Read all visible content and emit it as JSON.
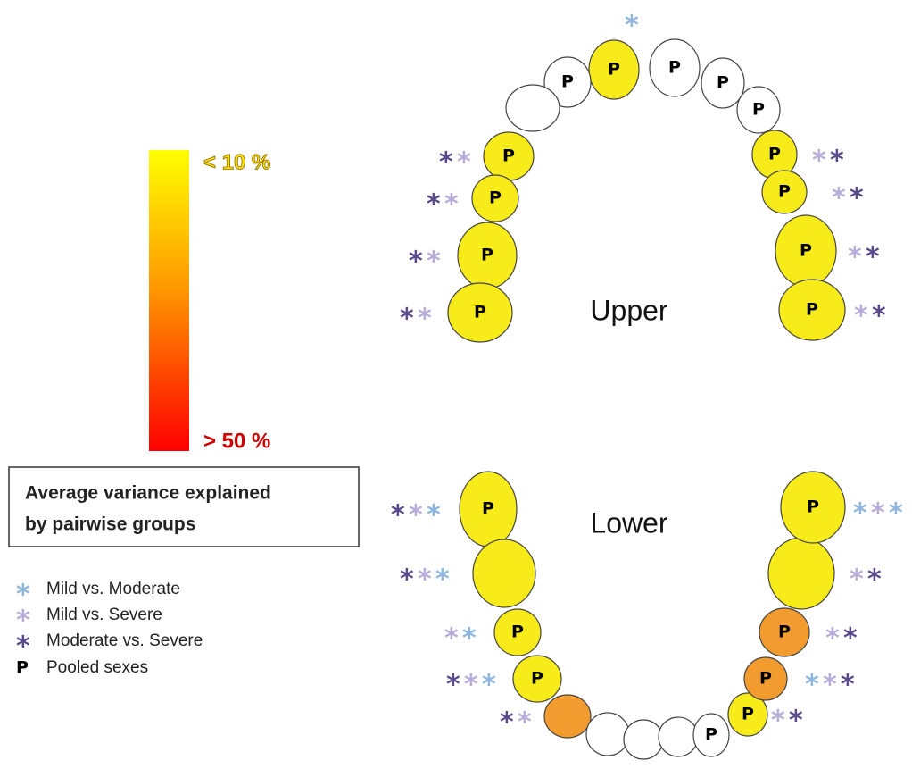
{
  "scale": {
    "top_label": "< 10 %",
    "bottom_label": "> 50 %"
  },
  "scale_caption": {
    "line1": "Average  variance explained",
    "line2": "by pairwise groups"
  },
  "legend": {
    "items": [
      {
        "symbol": "*",
        "label": "Mild vs. Moderate"
      },
      {
        "symbol": "*",
        "label": "Mild vs. Severe"
      },
      {
        "symbol": "*",
        "label": "Moderate vs. Severe"
      },
      {
        "symbol": "P",
        "label": "Pooled sexes"
      }
    ]
  },
  "arches": {
    "upper": "Upper",
    "lower": "Lower"
  }
}
